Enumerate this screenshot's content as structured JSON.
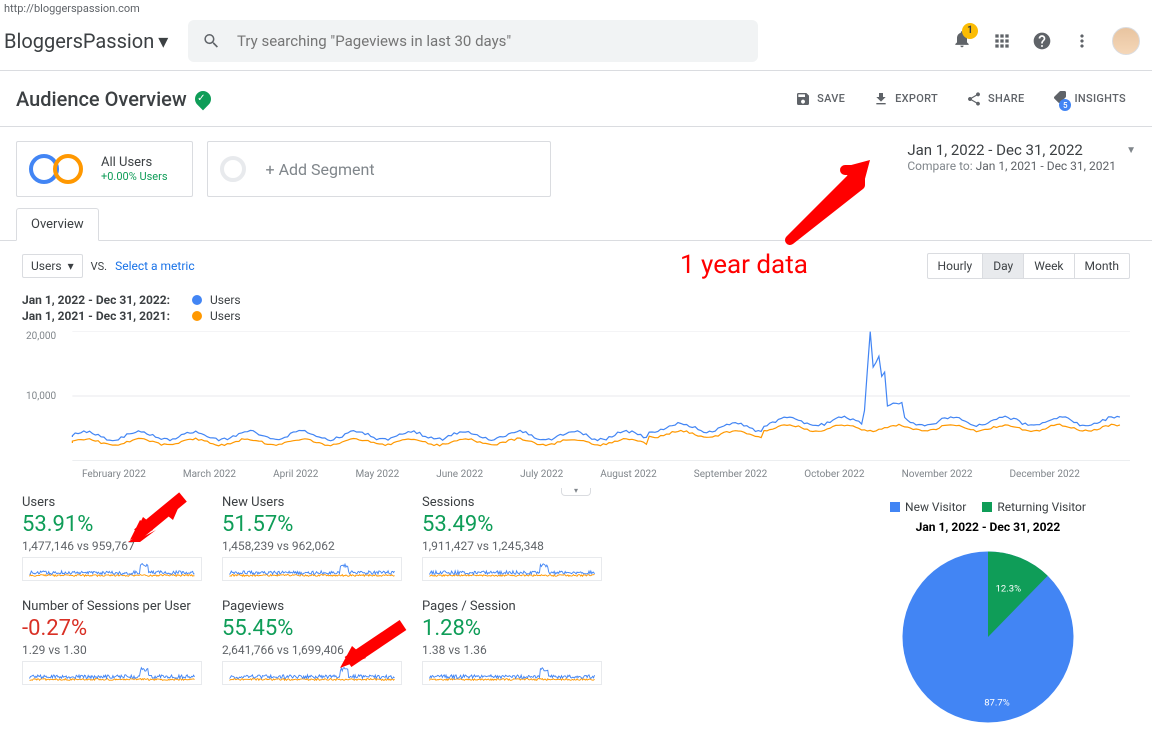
{
  "url": "http://bloggerspassion.com",
  "site_name": "BloggersPassion",
  "search_placeholder": "Try searching \"Pageviews in last 30 days\"",
  "notification_count": "1",
  "page_title": "Audience Overview",
  "actions": {
    "save": "SAVE",
    "export": "EXPORT",
    "share": "SHARE",
    "insights": "INSIGHTS"
  },
  "segment": {
    "all_users": "All Users",
    "pct": "+0.00% Users",
    "add": "+ Add Segment"
  },
  "date_range": {
    "main": "Jan 1, 2022 - Dec 31, 2022",
    "compare_label": "Compare to:",
    "compare": "Jan 1, 2021 - Dec 31, 2021"
  },
  "tab": "Overview",
  "metric_select": "Users",
  "vs": "VS.",
  "select_metric": "Select a metric",
  "granularity": [
    "Hourly",
    "Day",
    "Week",
    "Month"
  ],
  "granularity_active": 1,
  "legend": {
    "r1_label": "Jan 1, 2022 - Dec 31, 2022:",
    "r1_metric": "Users",
    "r1_color": "#4285f4",
    "r2_label": "Jan 1, 2021 - Dec 31, 2021:",
    "r2_metric": "Users",
    "r2_color": "#ff9800"
  },
  "chart": {
    "ylim": [
      0,
      20000
    ],
    "yticks": [
      "20,000",
      "10,000"
    ],
    "months": [
      "February 2022",
      "March 2022",
      "April 2022",
      "May 2022",
      "June 2022",
      "July 2022",
      "August 2022",
      "September 2022",
      "October 2022",
      "November 2022",
      "December 2022"
    ],
    "series_a_color": "#4285f4",
    "series_b_color": "#ff9800",
    "grid_color": "#e8eaed",
    "spike_x": 0.76,
    "spike_y": 19000
  },
  "metrics": [
    {
      "label": "Users",
      "pct": "53.91%",
      "dir": "up",
      "cmp": "1,477,146 vs 959,767"
    },
    {
      "label": "New Users",
      "pct": "51.57%",
      "dir": "up",
      "cmp": "1,458,239 vs 962,062"
    },
    {
      "label": "Sessions",
      "pct": "53.49%",
      "dir": "up",
      "cmp": "1,911,427 vs 1,245,348"
    },
    {
      "label": "Number of Sessions per User",
      "pct": "-0.27%",
      "dir": "down",
      "cmp": "1.29 vs 1.30"
    },
    {
      "label": "Pageviews",
      "pct": "55.45%",
      "dir": "up",
      "cmp": "2,641,766 vs 1,699,406"
    },
    {
      "label": "Pages / Session",
      "pct": "1.28%",
      "dir": "up",
      "cmp": "1.38 vs 1.36"
    }
  ],
  "pie": {
    "legend_a": "New Visitor",
    "color_a": "#4285f4",
    "val_a": "87.7%",
    "legend_b": "Returning Visitor",
    "color_b": "#0f9d58",
    "val_b": "12.3%",
    "date": "Jan 1, 2022 - Dec 31, 2022",
    "slice_b_pct": 12.3
  },
  "annotation": "1 year data",
  "colors": {
    "green": "#0f9d58",
    "red": "#d93025",
    "blue": "#4285f4",
    "orange": "#ff9800"
  }
}
